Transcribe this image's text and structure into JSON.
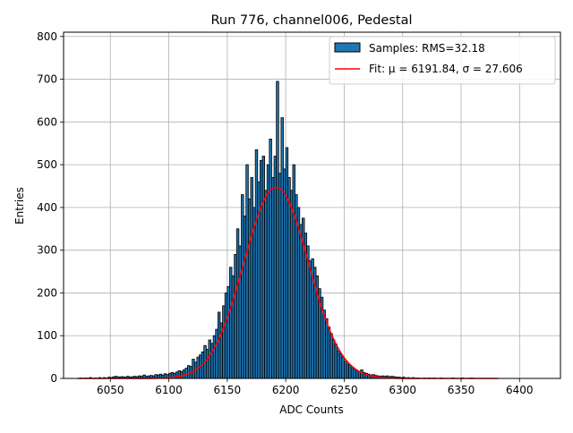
{
  "chart_data": {
    "type": "bar",
    "title": "Run 776, channel006, Pedestal",
    "xlabel": "ADC Counts",
    "ylabel": "Entries",
    "xlim": [
      6010,
      6435
    ],
    "ylim": [
      0,
      810
    ],
    "xticks": [
      6050,
      6100,
      6150,
      6200,
      6250,
      6300,
      6350,
      6400
    ],
    "yticks": [
      0,
      100,
      200,
      300,
      400,
      500,
      600,
      700,
      800
    ],
    "grid": true,
    "legend_placement": "top-right",
    "bin_width": 2,
    "colors": {
      "bars": "#1f77b4",
      "bar_edge": "#000000",
      "fit": "#ff0000",
      "grid": "#b0b0b0"
    },
    "series": [
      {
        "name": "Samples: RMS=32.18",
        "kind": "histogram",
        "bins": [
          [
            6024,
            1
          ],
          [
            6028,
            1
          ],
          [
            6032,
            2
          ],
          [
            6036,
            1
          ],
          [
            6040,
            2
          ],
          [
            6044,
            2
          ],
          [
            6048,
            3
          ],
          [
            6050,
            2
          ],
          [
            6052,
            4
          ],
          [
            6054,
            5
          ],
          [
            6056,
            3
          ],
          [
            6058,
            4
          ],
          [
            6060,
            4
          ],
          [
            6062,
            3
          ],
          [
            6064,
            5
          ],
          [
            6066,
            3
          ],
          [
            6068,
            4
          ],
          [
            6070,
            5
          ],
          [
            6072,
            4
          ],
          [
            6074,
            6
          ],
          [
            6076,
            5
          ],
          [
            6078,
            8
          ],
          [
            6080,
            5
          ],
          [
            6082,
            6
          ],
          [
            6084,
            7
          ],
          [
            6086,
            6
          ],
          [
            6088,
            9
          ],
          [
            6090,
            8
          ],
          [
            6092,
            10
          ],
          [
            6094,
            8
          ],
          [
            6096,
            11
          ],
          [
            6098,
            9
          ],
          [
            6100,
            12
          ],
          [
            6102,
            14
          ],
          [
            6104,
            12
          ],
          [
            6106,
            15
          ],
          [
            6108,
            18
          ],
          [
            6110,
            16
          ],
          [
            6112,
            20
          ],
          [
            6114,
            24
          ],
          [
            6116,
            30
          ],
          [
            6118,
            28
          ],
          [
            6120,
            45
          ],
          [
            6122,
            38
          ],
          [
            6124,
            50
          ],
          [
            6126,
            55
          ],
          [
            6128,
            62
          ],
          [
            6130,
            77
          ],
          [
            6132,
            68
          ],
          [
            6134,
            90
          ],
          [
            6136,
            82
          ],
          [
            6138,
            100
          ],
          [
            6140,
            115
          ],
          [
            6142,
            155
          ],
          [
            6144,
            130
          ],
          [
            6146,
            170
          ],
          [
            6148,
            200
          ],
          [
            6150,
            215
          ],
          [
            6152,
            260
          ],
          [
            6154,
            240
          ],
          [
            6156,
            290
          ],
          [
            6158,
            350
          ],
          [
            6160,
            310
          ],
          [
            6162,
            430
          ],
          [
            6164,
            380
          ],
          [
            6166,
            500
          ],
          [
            6168,
            420
          ],
          [
            6170,
            470
          ],
          [
            6172,
            400
          ],
          [
            6174,
            535
          ],
          [
            6176,
            460
          ],
          [
            6178,
            510
          ],
          [
            6180,
            520
          ],
          [
            6182,
            440
          ],
          [
            6184,
            500
          ],
          [
            6186,
            560
          ],
          [
            6188,
            470
          ],
          [
            6190,
            520
          ],
          [
            6192,
            695
          ],
          [
            6194,
            480
          ],
          [
            6196,
            610
          ],
          [
            6198,
            490
          ],
          [
            6200,
            540
          ],
          [
            6202,
            470
          ],
          [
            6204,
            440
          ],
          [
            6206,
            500
          ],
          [
            6208,
            430
          ],
          [
            6210,
            400
          ],
          [
            6212,
            360
          ],
          [
            6214,
            375
          ],
          [
            6216,
            340
          ],
          [
            6218,
            310
          ],
          [
            6220,
            275
          ],
          [
            6222,
            280
          ],
          [
            6224,
            260
          ],
          [
            6226,
            240
          ],
          [
            6228,
            210
          ],
          [
            6230,
            190
          ],
          [
            6232,
            160
          ],
          [
            6234,
            140
          ],
          [
            6236,
            120
          ],
          [
            6238,
            105
          ],
          [
            6240,
            90
          ],
          [
            6242,
            80
          ],
          [
            6244,
            65
          ],
          [
            6246,
            58
          ],
          [
            6248,
            50
          ],
          [
            6250,
            40
          ],
          [
            6252,
            34
          ],
          [
            6254,
            30
          ],
          [
            6256,
            25
          ],
          [
            6258,
            22
          ],
          [
            6260,
            18
          ],
          [
            6262,
            16
          ],
          [
            6264,
            20
          ],
          [
            6266,
            14
          ],
          [
            6268,
            12
          ],
          [
            6270,
            10
          ],
          [
            6272,
            8
          ],
          [
            6274,
            9
          ],
          [
            6276,
            7
          ],
          [
            6278,
            6
          ],
          [
            6280,
            5
          ],
          [
            6282,
            6
          ],
          [
            6284,
            5
          ],
          [
            6286,
            6
          ],
          [
            6288,
            4
          ],
          [
            6290,
            5
          ],
          [
            6292,
            4
          ],
          [
            6294,
            3
          ],
          [
            6296,
            3
          ],
          [
            6298,
            2
          ],
          [
            6300,
            3
          ],
          [
            6304,
            2
          ],
          [
            6308,
            2
          ],
          [
            6312,
            1
          ],
          [
            6318,
            1
          ],
          [
            6322,
            1
          ],
          [
            6326,
            1
          ],
          [
            6332,
            1
          ],
          [
            6342,
            1
          ],
          [
            6350,
            1
          ],
          [
            6358,
            1
          ]
        ]
      },
      {
        "name": "Fit: μ = 6191.84, σ = 27.606",
        "kind": "gaussian",
        "mu": 6191.84,
        "sigma": 27.606,
        "amplitude": 447,
        "x_range": [
          6022,
          6382
        ]
      }
    ]
  }
}
